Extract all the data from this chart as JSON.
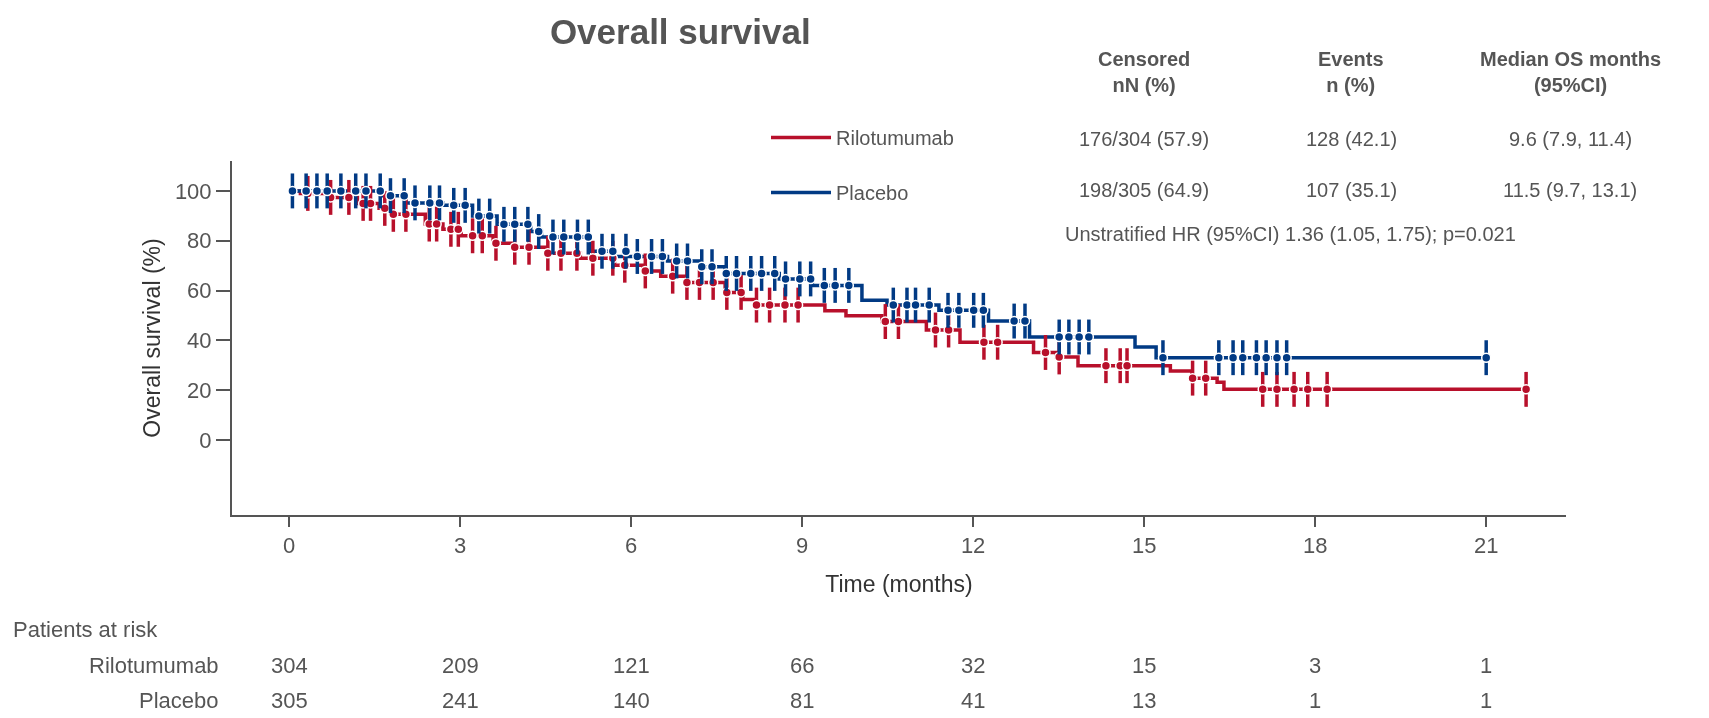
{
  "chart_data": {
    "type": "step",
    "title": "Overall survival",
    "xlabel": "Time (months)",
    "ylabel": "Overall survival (%)",
    "xlim": [
      -1,
      22.4
    ],
    "xticks": [
      0,
      3,
      6,
      9,
      12,
      15,
      18,
      21
    ],
    "ylim": [
      -30,
      112
    ],
    "yticks": [
      0,
      20,
      40,
      60,
      80,
      100
    ],
    "grid": false,
    "legend": "top right",
    "line_style": "solid",
    "series": [
      {
        "name": "Rilotumumab",
        "color": "#b8102b",
        "x": [
          0,
          0.2,
          0.7,
          1.2,
          1.58,
          1.8,
          2.39,
          2.7,
          3.02,
          3.58,
          3.92,
          4.52,
          5.11,
          5.71,
          6.21,
          6.52,
          6.96,
          7.65,
          7.96,
          8.18,
          9.4,
          9.77,
          10.4,
          11.18,
          11.77,
          13.06,
          13.46,
          13.84,
          15.46,
          15.84,
          16.28,
          16.4,
          21.7
        ],
        "values": [
          100,
          99,
          97.4,
          95,
          93,
          90.6,
          86.7,
          84.6,
          82,
          79,
          77.4,
          75,
          73,
          70.2,
          67.9,
          65.8,
          63.3,
          59.3,
          56.4,
          54.2,
          51.9,
          49.9,
          47.6,
          44.2,
          39.3,
          35.2,
          33.4,
          29.9,
          27.8,
          24.9,
          23.3,
          20.4,
          20.4
        ]
      },
      {
        "name": "Placebo",
        "color": "#013a84",
        "x": [
          0,
          1.64,
          2.05,
          2.7,
          3.22,
          3.65,
          4.24,
          4.43,
          5.28,
          5.72,
          6.64,
          7.21,
          7.65,
          8.6,
          9.18,
          10.05,
          10.49,
          11.4,
          12.27,
          12.99,
          14.84,
          15.21,
          21.0
        ],
        "values": [
          100,
          98.1,
          95.2,
          94.2,
          89.9,
          86.6,
          83.7,
          81.5,
          75.8,
          73.7,
          71.9,
          69.6,
          66.9,
          64.7,
          62.1,
          56.1,
          54.2,
          52.1,
          47.8,
          41.4,
          37.4,
          33.1,
          33.1
        ]
      },
      {
        "color": "#b8102b",
        "type": "scatter",
        "marker": "circle",
        "errors": [
          7,
          7,
          7,
          7,
          7,
          7,
          7,
          7,
          7,
          7,
          7,
          7,
          7,
          7,
          7,
          7,
          7,
          7,
          7,
          7,
          7,
          7,
          7,
          7,
          7,
          7,
          7,
          7,
          7,
          7,
          7,
          7,
          7,
          7,
          7,
          7,
          7,
          7,
          7,
          7,
          7,
          7,
          7,
          7,
          7,
          7,
          7,
          7,
          7,
          7,
          7,
          7,
          7
        ],
        "x": [
          0.33,
          0.73,
          1.05,
          1.3,
          1.43,
          1.68,
          1.83,
          2.05,
          2.46,
          2.59,
          2.84,
          2.97,
          3.22,
          3.39,
          3.63,
          3.96,
          4.21,
          4.54,
          4.77,
          5.05,
          5.33,
          5.68,
          5.89,
          6.25,
          6.73,
          6.98,
          7.2,
          7.44,
          7.68,
          7.93,
          8.2,
          8.43,
          8.7,
          8.93,
          10.46,
          10.69,
          11.34,
          11.57,
          12.19,
          12.43,
          13.27,
          13.51,
          14.33,
          14.58,
          14.7,
          15.85,
          16.08,
          17.08,
          17.33,
          17.63,
          17.87,
          18.21,
          21.7
        ],
        "values": [
          99,
          97.4,
          97.4,
          95,
          95,
          93,
          90.6,
          90.6,
          86.7,
          86.7,
          84.6,
          84.6,
          82,
          82,
          79,
          77.4,
          77.4,
          75,
          75,
          75,
          73,
          73,
          70.2,
          67.9,
          65.8,
          63.3,
          63.3,
          63.3,
          59.3,
          59.3,
          54.2,
          54.2,
          54.2,
          54.2,
          47.6,
          47.6,
          44.2,
          44.2,
          39.3,
          39.3,
          35.2,
          33.4,
          29.9,
          29.9,
          29.9,
          24.9,
          24.9,
          20.4,
          20.4,
          20.4,
          20.4,
          20.4,
          20.4
        ]
      },
      {
        "color": "#013a84",
        "type": "scatter",
        "marker": "circle",
        "errors": [
          7,
          7,
          7,
          7,
          7,
          7,
          7,
          7,
          7,
          7,
          7,
          7,
          7,
          7,
          7,
          7,
          7,
          7,
          7,
          7,
          7,
          7,
          7,
          7,
          7,
          7,
          7,
          7,
          7,
          7,
          7,
          7,
          7,
          7,
          7,
          7,
          7,
          7,
          7,
          7,
          7,
          7,
          7,
          7,
          7,
          7,
          7,
          7,
          7,
          7,
          7,
          7,
          7,
          7,
          7,
          7,
          7,
          7,
          7,
          7,
          7,
          7,
          7,
          7,
          7,
          7,
          7,
          7,
          7
        ],
        "x": [
          0.06,
          0.3,
          0.49,
          0.67,
          0.91,
          1.17,
          1.35,
          1.6,
          1.78,
          2.02,
          2.21,
          2.47,
          2.64,
          2.89,
          3.09,
          3.33,
          3.52,
          3.77,
          3.96,
          4.19,
          4.38,
          4.63,
          4.82,
          5.06,
          5.25,
          5.49,
          5.68,
          5.91,
          6.11,
          6.36,
          6.55,
          6.8,
          6.99,
          7.24,
          7.42,
          7.67,
          7.85,
          8.1,
          8.29,
          8.52,
          8.71,
          8.96,
          9.15,
          9.39,
          9.58,
          9.82,
          10.6,
          10.84,
          10.99,
          11.23,
          11.56,
          11.75,
          12.01,
          12.18,
          12.72,
          12.91,
          13.51,
          13.68,
          13.86,
          14.03,
          15.33,
          16.31,
          16.56,
          16.73,
          16.97,
          17.14,
          17.33,
          17.5,
          21.0
        ],
        "values": [
          100,
          100,
          100,
          100,
          100,
          100,
          100,
          100,
          98.1,
          98.1,
          95.2,
          95.2,
          95.2,
          94.2,
          94.2,
          89.9,
          89.9,
          86.6,
          86.6,
          86.6,
          83.7,
          81.5,
          81.5,
          81.5,
          81.5,
          75.8,
          75.8,
          75.8,
          73.7,
          73.7,
          73.7,
          71.9,
          71.9,
          69.6,
          69.6,
          66.9,
          66.9,
          66.9,
          66.9,
          66.9,
          64.7,
          64.7,
          64.7,
          62.1,
          62.1,
          62.1,
          54.2,
          54.2,
          54.2,
          54.2,
          52.1,
          52.1,
          52.1,
          52.1,
          47.8,
          47.8,
          41.4,
          41.4,
          41.4,
          41.4,
          33.1,
          33.1,
          33.1,
          33.1,
          33.1,
          33.1,
          33.1,
          33.1,
          33.1
        ]
      }
    ],
    "annotations": [
      "Censored\nnN (%)",
      "Events\nn (%)",
      "Median OS months\n(95%CI)",
      "176/304 (57.9)",
      "128 (42.1)",
      "9.6 (7.9, 11.4)",
      "198/305 (64.9)",
      "107 (35.1)",
      "11.5 (9.7, 13.1)",
      "Unstratified HR (95%CI) 1.36 (1.05, 1.75); p=0.021",
      "Patients at risk",
      "Rilotumumab",
      "304",
      "209",
      "121",
      "66",
      "32",
      "15",
      "3",
      "1",
      "Placebo",
      "305",
      "241",
      "140",
      "81",
      "41",
      "13",
      "1",
      "1"
    ]
  }
}
